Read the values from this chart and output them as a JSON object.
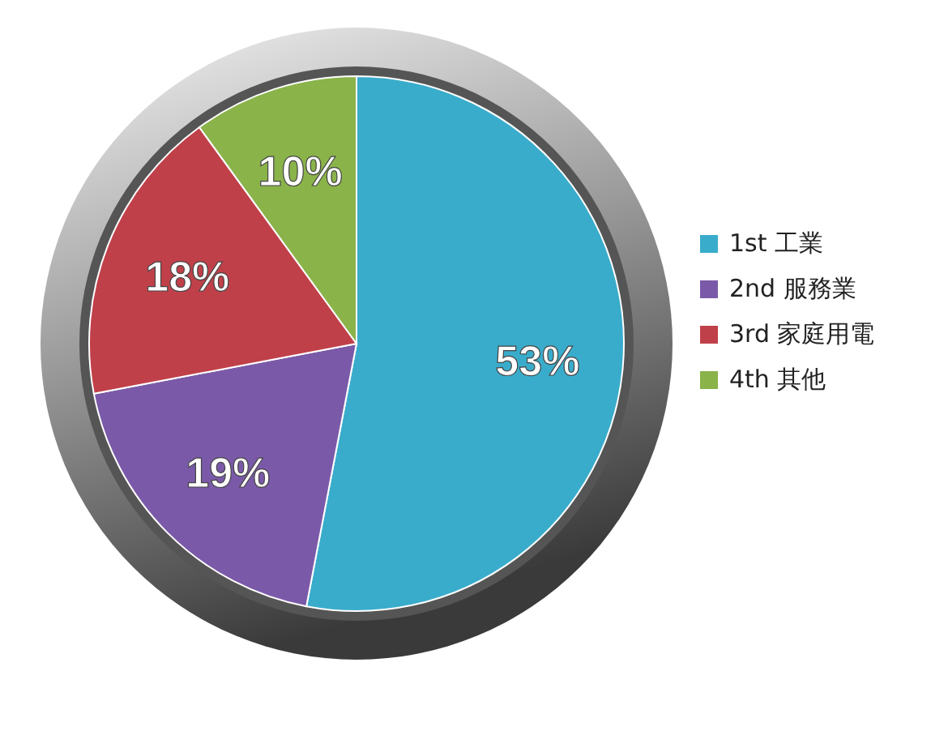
{
  "chart_data": {
    "type": "pie",
    "categories": [
      "1st 工業",
      "2nd 服務業",
      "3rd 家庭用電",
      "4th 其他"
    ],
    "values": [
      53,
      19,
      18,
      10
    ],
    "colors": [
      "#3aaccb",
      "#7a5aa8",
      "#c0404a",
      "#8ab34a"
    ],
    "value_labels": [
      "53%",
      "19%",
      "18%",
      "10%"
    ],
    "legend": "right"
  }
}
